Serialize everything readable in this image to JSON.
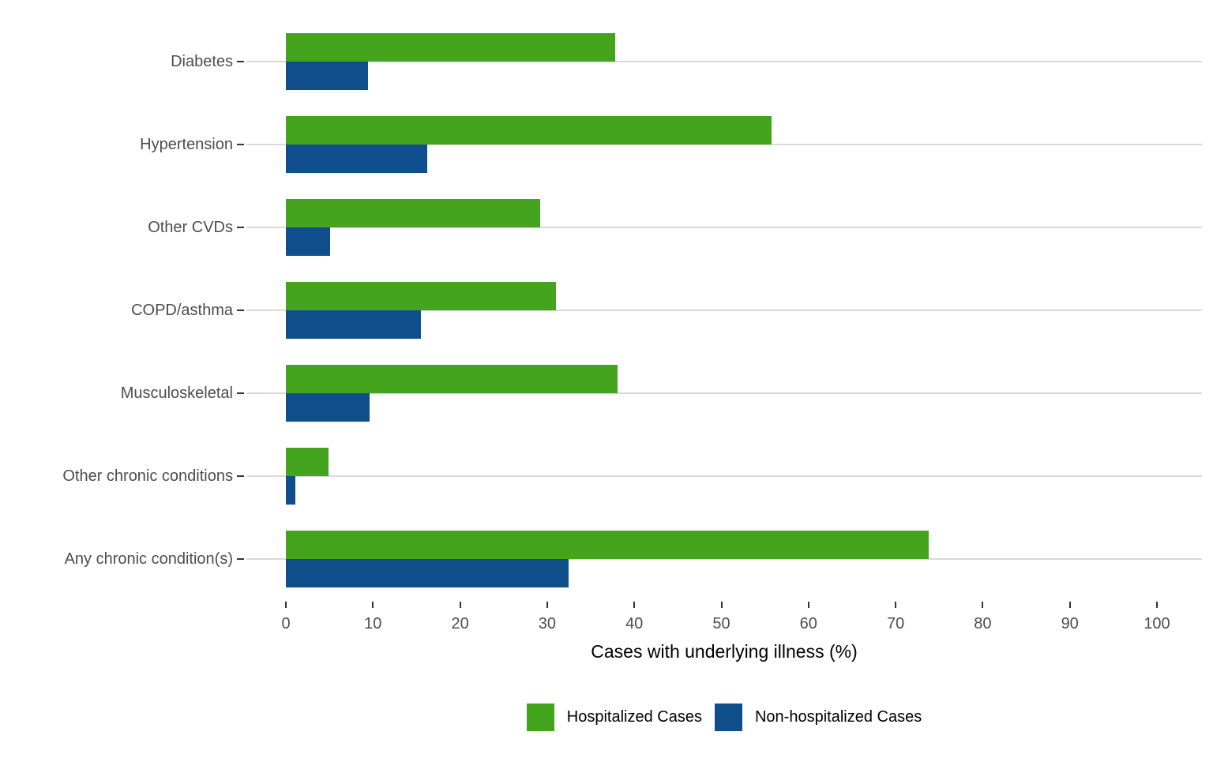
{
  "chart_data": {
    "type": "bar",
    "orientation": "horizontal",
    "title": "",
    "xlabel": "Cases with underlying illness (%)",
    "ylabel": "",
    "categories": [
      "Diabetes",
      "Hypertension",
      "Other CVDs",
      "COPD/asthma",
      "Musculoskeletal",
      "Other chronic conditions",
      "Any chronic condition(s)"
    ],
    "series": [
      {
        "name": "Hospitalized Cases",
        "color": "#44a41e",
        "values": [
          37.8,
          55.8,
          29.2,
          31.0,
          38.1,
          4.9,
          73.8
        ]
      },
      {
        "name": "Non-hospitalized Cases",
        "color": "#104e8b",
        "values": [
          9.4,
          16.2,
          5.1,
          15.5,
          9.6,
          1.1,
          32.5
        ]
      }
    ],
    "xlim": [
      0,
      100
    ],
    "xticks": [
      0,
      10,
      20,
      30,
      40,
      50,
      60,
      70,
      80,
      90,
      100
    ],
    "grid": "horizontal-category-gridlines-only",
    "gridline_color": "#d9d9d9",
    "axis_text_color": "#4d4d4d",
    "legend_position": "bottom"
  }
}
